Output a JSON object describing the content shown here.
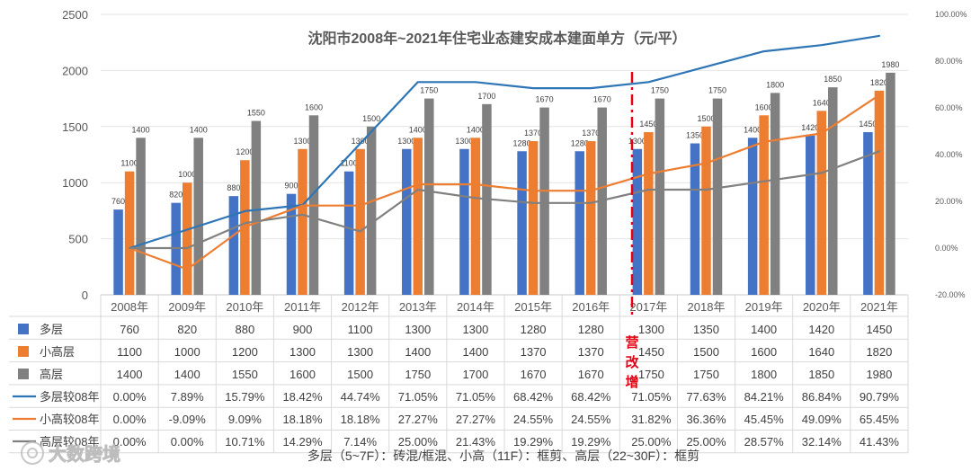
{
  "chart_data": {
    "type": "bar",
    "title": "沈阳市2008年~2021年住宅业态建安成本建面单方（元/平）",
    "categories": [
      "2008年",
      "2009年",
      "2010年",
      "2011年",
      "2012年",
      "2013年",
      "2014年",
      "2015年",
      "2016年",
      "2017年",
      "2018年",
      "2019年",
      "2020年",
      "2021年"
    ],
    "ylim": [
      0,
      2500
    ],
    "yticks": [
      0,
      500,
      1000,
      1500,
      2000,
      2500
    ],
    "y2lim": [
      -20,
      100
    ],
    "y2ticks": [
      "-20.00%",
      "0.00%",
      "20.00%",
      "40.00%",
      "60.00%",
      "80.00%",
      "100.00%"
    ],
    "y2values": [
      -20,
      0,
      20,
      40,
      60,
      80,
      100
    ],
    "series": [
      {
        "name": "多层",
        "kind": "bar",
        "color": "#4472c4",
        "values": [
          760,
          820,
          880,
          900,
          1100,
          1300,
          1300,
          1280,
          1280,
          1300,
          1350,
          1400,
          1420,
          1450
        ],
        "labels": [
          "760",
          "820",
          "880",
          "900",
          "1100",
          "1300",
          "1300",
          "1280",
          "1280",
          "1300",
          "1350",
          "1400",
          "1420",
          "1450"
        ]
      },
      {
        "name": "小高层",
        "kind": "bar",
        "color": "#ed7d31",
        "values": [
          1100,
          1000,
          1200,
          1300,
          1300,
          1400,
          1400,
          1370,
          1370,
          1450,
          1500,
          1600,
          1640,
          1820
        ],
        "labels": [
          "1100",
          "1000",
          "1200",
          "1300",
          "1300",
          "1400",
          "1400",
          "1370",
          "1370",
          "1450",
          "1500",
          "1600",
          "1640",
          "1820"
        ]
      },
      {
        "name": "高层",
        "kind": "bar",
        "color": "#808080",
        "values": [
          1400,
          1400,
          1550,
          1600,
          1500,
          1750,
          1700,
          1670,
          1670,
          1750,
          1750,
          1800,
          1850,
          1980
        ],
        "labels": [
          "1400",
          "1400",
          "1550",
          "1600",
          "1500",
          "1750",
          "1700",
          "1670",
          "1670",
          "1750",
          "1750",
          "1800",
          "1850",
          "1980"
        ]
      },
      {
        "name": "多层较08年",
        "kind": "line",
        "color": "#2e75b6",
        "values": [
          0.0,
          7.89,
          15.79,
          18.42,
          44.74,
          71.05,
          71.05,
          68.42,
          68.42,
          71.05,
          77.63,
          84.21,
          86.84,
          90.79
        ],
        "labels": [
          "0.00%",
          "7.89%",
          "15.79%",
          "18.42%",
          "44.74%",
          "71.05%",
          "71.05%",
          "68.42%",
          "68.42%",
          "71.05%",
          "77.63%",
          "84.21%",
          "86.84%",
          "90.79%"
        ]
      },
      {
        "name": "小高较08年",
        "kind": "line",
        "color": "#ed7d31",
        "values": [
          0.0,
          -9.09,
          9.09,
          18.18,
          18.18,
          27.27,
          27.27,
          24.55,
          24.55,
          31.82,
          36.36,
          45.45,
          49.09,
          65.45
        ],
        "labels": [
          "0.00%",
          "-9.09%",
          "9.09%",
          "18.18%",
          "18.18%",
          "27.27%",
          "27.27%",
          "24.55%",
          "24.55%",
          "31.82%",
          "36.36%",
          "45.45%",
          "49.09%",
          "65.45%"
        ]
      },
      {
        "name": "高层较08年",
        "kind": "line",
        "color": "#808080",
        "values": [
          0.0,
          0.0,
          10.71,
          14.29,
          7.14,
          25.0,
          21.43,
          19.29,
          19.29,
          25.0,
          25.0,
          28.57,
          32.14,
          41.43
        ],
        "labels": [
          "0.00%",
          "0.00%",
          "10.71%",
          "14.29%",
          "7.14%",
          "25.00%",
          "21.43%",
          "19.29%",
          "19.29%",
          "25.00%",
          "25.00%",
          "28.57%",
          "32.14%",
          "41.43%"
        ]
      }
    ],
    "annotation": {
      "text": "营改增",
      "color": "#e60012"
    },
    "footnote": "多层（5~7F）：砖混/框混、小高（11F）：框剪、高层（22~30F）：框剪",
    "watermark": "大数跨境"
  }
}
